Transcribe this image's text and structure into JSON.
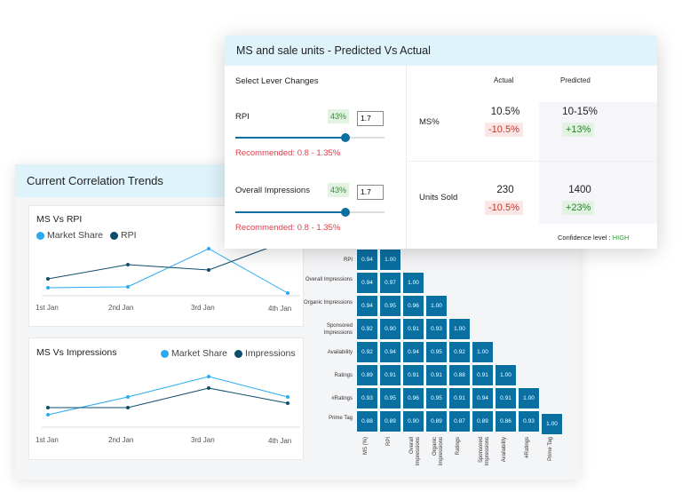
{
  "correlation_panel": {
    "title": "Current Correlation Trends",
    "chart_rpi": {
      "title": "MS Vs RPI",
      "legend": [
        "Market Share",
        "RPI"
      ],
      "x": [
        "1st Jan",
        "2nd Jan",
        "3rd Jan",
        "4th Jan"
      ],
      "series": [
        {
          "name": "Market Share",
          "values": [
            9,
            10,
            53,
            3
          ],
          "color": "#29aaf4"
        },
        {
          "name": "RPI",
          "values": [
            19,
            35,
            29,
            62
          ],
          "color": "#0d4d6b"
        }
      ]
    },
    "chart_impr": {
      "title": "MS Vs Impressions",
      "legend": [
        "Market Share",
        "Impressions"
      ],
      "x": [
        "1st Jan",
        "2nd Jan",
        "3rd Jan",
        "4th Jan"
      ],
      "series": [
        {
          "name": "Market Share",
          "values": [
            14,
            34,
            57,
            34
          ],
          "color": "#29aaf4"
        },
        {
          "name": "Impressions",
          "values": [
            22,
            22,
            44,
            27
          ],
          "color": "#0d4d6b"
        }
      ]
    },
    "heatmap": {
      "rows": [
        "RPI",
        "Overall Impressions",
        "Organic Impressions",
        "Sponsored Impressions",
        "Availability",
        "Ratings",
        "#Ratings",
        "Prime Tag"
      ],
      "cols": [
        "MS (%)",
        "RPI",
        "Overall Impressions",
        "Organic Impressions",
        "Ratings",
        "Sponsored Impressions",
        "Availability",
        "#Ratings",
        "Prime Tag"
      ],
      "values": [
        [
          "0.94",
          "1.00"
        ],
        [
          "0.94",
          "0.97",
          "1.00"
        ],
        [
          "0.94",
          "0.95",
          "0.96",
          "1.00"
        ],
        [
          "0.92",
          "0.90",
          "0.91",
          "0.93",
          "1.00"
        ],
        [
          "0.92",
          "0.94",
          "0.94",
          "0.95",
          "0.92",
          "1.00"
        ],
        [
          "0.89",
          "0.91",
          "0.91",
          "0.91",
          "0.88",
          "0.91",
          "1.00"
        ],
        [
          "0.93",
          "0.95",
          "0.96",
          "0.95",
          "0.91",
          "0.94",
          "0.91",
          "1.00"
        ],
        [
          "0.88",
          "0.89",
          "0.90",
          "0.89",
          "0.87",
          "0.89",
          "0.86",
          "0.93",
          "1.00"
        ]
      ],
      "color": "#0a6fa1"
    }
  },
  "prediction_panel": {
    "title": "MS and sale units - Predicted Vs Actual",
    "levers_title": "Select Lever Changes",
    "levers": [
      {
        "label": "RPI",
        "percent": "43%",
        "value": "1.7",
        "slider_fraction": 0.74,
        "recommended": "Recommended: 0.8 - 1.35%"
      },
      {
        "label": "Overall Impressions",
        "percent": "43%",
        "value": "1.7",
        "slider_fraction": 0.74,
        "recommended": "Recommended: 0.8 - 1.35%"
      }
    ],
    "col_actual": "Actual",
    "col_predicted": "Predicted",
    "rows": [
      {
        "label": "MS%",
        "actual": "10.5%",
        "actual_change": "-10.5%",
        "predicted": "10-15%",
        "predicted_change": "+13%"
      },
      {
        "label": "Units Sold",
        "actual": "230",
        "actual_change": "-10.5%",
        "predicted": "1400",
        "predicted_change": "+23%"
      }
    ],
    "confidence_label": "Confidence level :",
    "confidence_value": "HIGH"
  }
}
